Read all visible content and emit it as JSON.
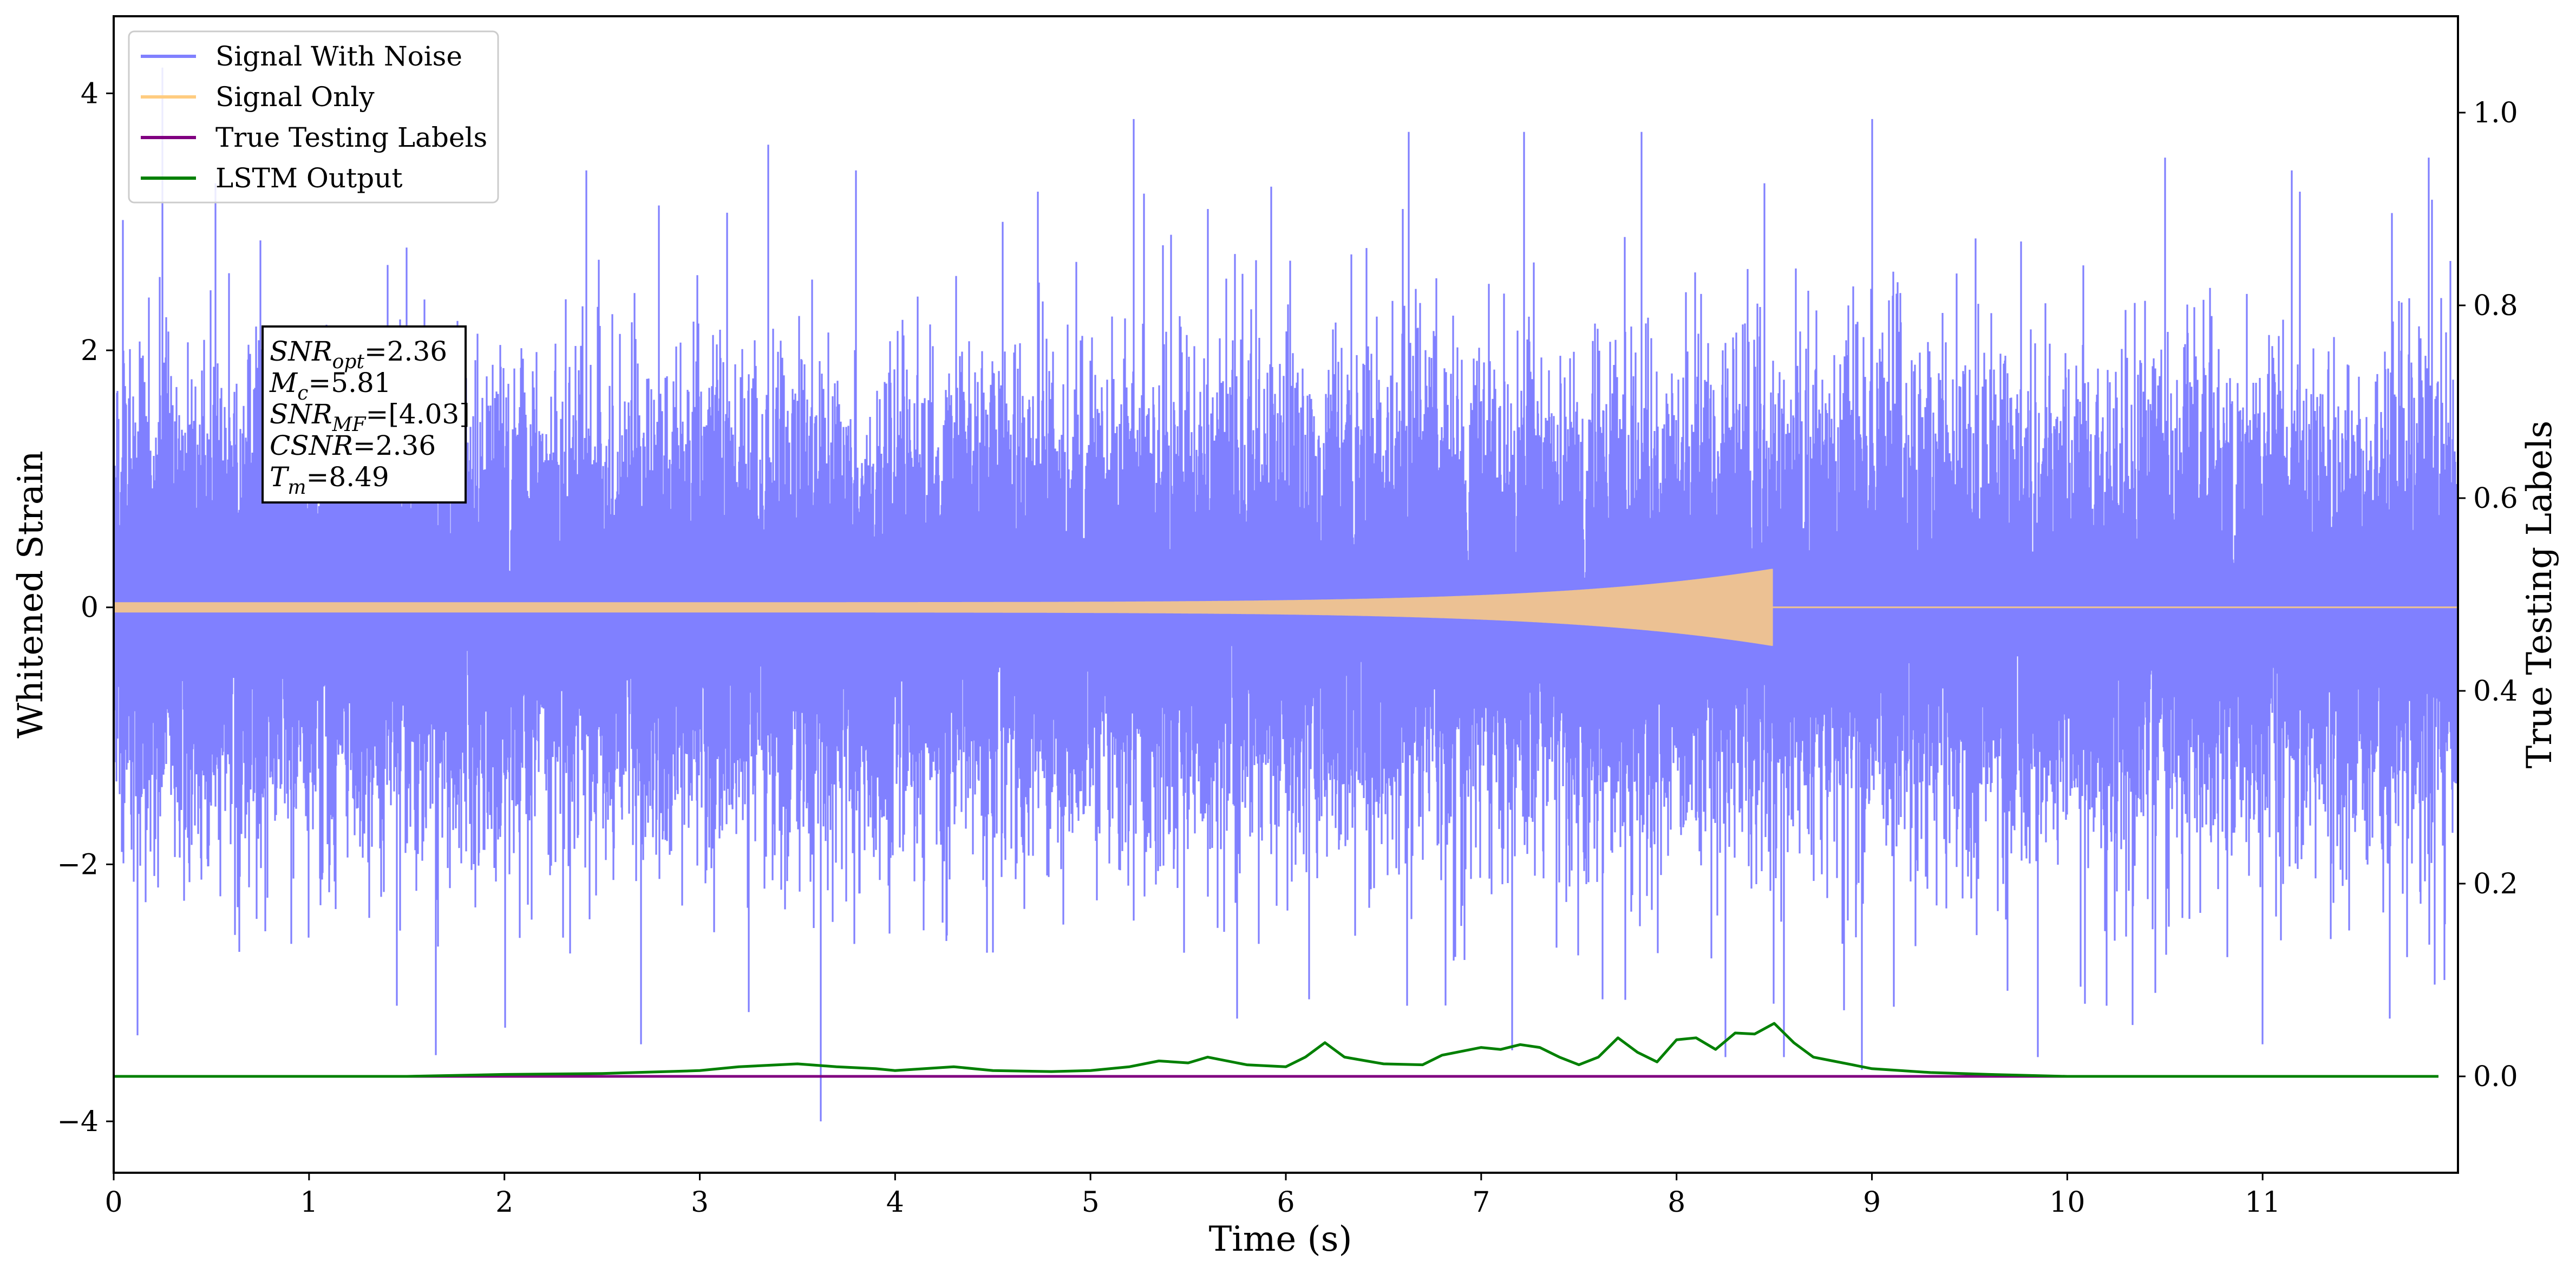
{
  "chart_data": {
    "type": "line",
    "xlabel": "Time (s)",
    "ylabel": "Whitened Strain",
    "ylabel_right": "True Testing Labels",
    "xlim": [
      0,
      12
    ],
    "ylim": [
      -4.4,
      4.6
    ],
    "ylim_right": [
      -0.1,
      1.1
    ],
    "x_ticks": [
      0,
      1,
      2,
      3,
      4,
      5,
      6,
      7,
      8,
      9,
      10,
      11
    ],
    "x_tick_labels": [
      "0",
      "1",
      "2",
      "3",
      "4",
      "5",
      "6",
      "7",
      "8",
      "9",
      "10",
      "11"
    ],
    "y_ticks": [
      -4,
      -2,
      0,
      2,
      4
    ],
    "y_tick_labels": [
      "−4",
      "−2",
      "0",
      "2",
      "4"
    ],
    "y_right_ticks": [
      0.0,
      0.2,
      0.4,
      0.6,
      0.8,
      1.0
    ],
    "y_right_tick_labels": [
      "0.0",
      "0.2",
      "0.4",
      "0.6",
      "0.8",
      "1.0"
    ],
    "grid": false,
    "legend": {
      "placement": "top-left",
      "entries": [
        {
          "label": "Signal With Noise",
          "color": "#8080ff"
        },
        {
          "label": "Signal Only",
          "color": "#ffcc80"
        },
        {
          "label": "True Testing Labels",
          "color": "#800080"
        },
        {
          "label": "LSTM Output",
          "color": "#008000"
        }
      ]
    },
    "annotation": [
      {
        "sym": "SNR",
        "sub": "opt",
        "value": "=2.36"
      },
      {
        "sym": "M",
        "sub": "c",
        "value": "=5.81"
      },
      {
        "sym": "SNR",
        "sub": "MF",
        "value": "=[4.03]"
      },
      {
        "sym": "CSNR",
        "sub": "",
        "value": "=2.36"
      },
      {
        "sym": "T",
        "sub": "m",
        "value": "=8.49"
      }
    ],
    "series": [
      {
        "name": "Signal With Noise",
        "axis": "left",
        "color": "#8080ff",
        "noise_std": 0.85,
        "x_range": [
          0,
          12
        ],
        "peaks": [
          {
            "x": 0.25,
            "y": 4.2
          },
          {
            "x": 0.52,
            "y": 3.3
          },
          {
            "x": 1.5,
            "y": 2.8
          },
          {
            "x": 2.42,
            "y": 3.4
          },
          {
            "x": 3.35,
            "y": 3.6
          },
          {
            "x": 3.8,
            "y": 3.4
          },
          {
            "x": 4.55,
            "y": 3.0
          },
          {
            "x": 5.22,
            "y": 3.8
          },
          {
            "x": 5.6,
            "y": 3.1
          },
          {
            "x": 6.6,
            "y": 3.1
          },
          {
            "x": 6.63,
            "y": 3.7
          },
          {
            "x": 7.22,
            "y": 3.7
          },
          {
            "x": 7.82,
            "y": 3.7
          },
          {
            "x": 8.45,
            "y": 3.3
          },
          {
            "x": 9.0,
            "y": 3.8
          },
          {
            "x": 9.85,
            "y": 3.2
          },
          {
            "x": 10.5,
            "y": 3.5
          },
          {
            "x": 11.15,
            "y": 3.4
          },
          {
            "x": 11.85,
            "y": 3.5
          },
          {
            "x": 1.45,
            "y": -3.1
          },
          {
            "x": 2.7,
            "y": -3.4
          },
          {
            "x": 3.25,
            "y": -3.15
          },
          {
            "x": 3.62,
            "y": -4.0
          },
          {
            "x": 5.75,
            "y": -3.2
          },
          {
            "x": 6.12,
            "y": -3.05
          },
          {
            "x": 6.62,
            "y": -3.1
          },
          {
            "x": 7.62,
            "y": -3.05
          },
          {
            "x": 8.25,
            "y": -3.5
          },
          {
            "x": 8.55,
            "y": -3.5
          },
          {
            "x": 8.95,
            "y": -3.6
          },
          {
            "x": 9.85,
            "y": -3.5
          },
          {
            "x": 10.2,
            "y": -3.1
          },
          {
            "x": 10.45,
            "y": -3.0
          },
          {
            "x": 11.0,
            "y": -3.4
          },
          {
            "x": 11.65,
            "y": -3.2
          },
          {
            "x": 11.93,
            "y": -2.9
          }
        ]
      },
      {
        "name": "Signal Only",
        "axis": "left",
        "color": "#ffcc80",
        "x_range": [
          0,
          12
        ],
        "merger_time": 8.49,
        "amplitude_start": 0.04,
        "amplitude_peak": 0.3
      },
      {
        "name": "True Testing Labels",
        "axis": "right",
        "color": "#800080",
        "x": [
          0,
          11.9
        ],
        "y": [
          0,
          0
        ]
      },
      {
        "name": "LSTM Output",
        "axis": "right",
        "color": "#008000",
        "x": [
          0,
          0.5,
          1,
          1.5,
          2,
          2.5,
          3,
          3.2,
          3.5,
          3.7,
          3.9,
          4.0,
          4.3,
          4.5,
          4.8,
          5.0,
          5.2,
          5.35,
          5.5,
          5.6,
          5.8,
          6.0,
          6.1,
          6.2,
          6.3,
          6.5,
          6.7,
          6.8,
          6.9,
          7.0,
          7.1,
          7.2,
          7.3,
          7.4,
          7.5,
          7.6,
          7.7,
          7.8,
          7.9,
          8.0,
          8.1,
          8.2,
          8.3,
          8.4,
          8.5,
          8.6,
          8.7,
          8.8,
          8.9,
          9.0,
          9.3,
          9.6,
          10.0,
          10.5,
          11.0,
          11.9
        ],
        "y": [
          0.0,
          0.0,
          0.0,
          0.0,
          0.002,
          0.003,
          0.006,
          0.01,
          0.013,
          0.01,
          0.008,
          0.006,
          0.01,
          0.006,
          0.005,
          0.006,
          0.01,
          0.016,
          0.014,
          0.02,
          0.012,
          0.01,
          0.02,
          0.035,
          0.02,
          0.013,
          0.012,
          0.022,
          0.026,
          0.03,
          0.028,
          0.033,
          0.03,
          0.02,
          0.012,
          0.02,
          0.04,
          0.025,
          0.015,
          0.038,
          0.04,
          0.028,
          0.045,
          0.044,
          0.055,
          0.035,
          0.02,
          0.016,
          0.012,
          0.008,
          0.004,
          0.002,
          0.0,
          0.0,
          0.0,
          0.0
        ]
      }
    ]
  }
}
